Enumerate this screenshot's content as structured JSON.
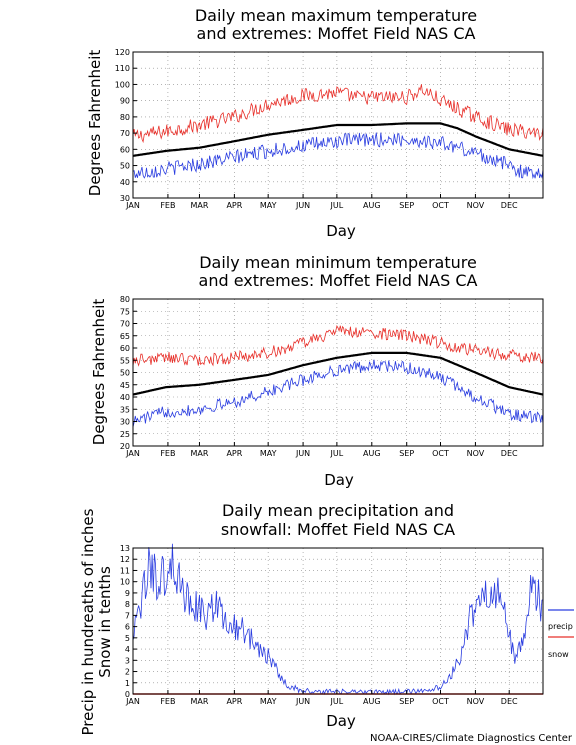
{
  "credit": "NOAA-CIRES/Climate Diagnostics Center",
  "chart_data": [
    {
      "type": "line",
      "title": [
        "Daily mean maximum temperature",
        "and extremes: Moffet Field NAS CA"
      ],
      "xlabel": "Day",
      "ylabel": "Degrees Fahrenheit",
      "ylim": [
        30,
        120
      ],
      "yticks": [
        30,
        40,
        50,
        60,
        70,
        80,
        90,
        100,
        110,
        120
      ],
      "xlim": [
        1,
        365
      ],
      "xticks": [
        "JAN",
        "FEB",
        "MAR",
        "APR",
        "MAY",
        "JUN",
        "JUL",
        "AUG",
        "SEP",
        "OCT",
        "NOV",
        "DEC"
      ],
      "grid": true,
      "series": [
        {
          "color": "#e8302a",
          "style": "noisy",
          "x": [
            1,
            30,
            60,
            91,
            121,
            152,
            182,
            200,
            213,
            244,
            258,
            274,
            305,
            335,
            365
          ],
          "values": [
            68,
            71,
            75,
            80,
            88,
            93,
            95,
            92,
            92,
            92,
            97,
            90,
            80,
            72,
            70
          ]
        },
        {
          "color": "#000000",
          "style": "mean",
          "x": [
            1,
            30,
            60,
            91,
            121,
            152,
            182,
            213,
            244,
            274,
            289,
            305,
            335,
            365
          ],
          "values": [
            56,
            59,
            61,
            65,
            69,
            72,
            75,
            75,
            76,
            76,
            73,
            68,
            60,
            56
          ]
        },
        {
          "color": "#2a3de0",
          "style": "noisy",
          "x": [
            1,
            30,
            60,
            91,
            121,
            152,
            182,
            213,
            244,
            274,
            305,
            335,
            350,
            365
          ],
          "values": [
            45,
            48,
            51,
            55,
            59,
            62,
            65,
            66,
            66,
            64,
            58,
            50,
            45,
            47
          ]
        }
      ]
    },
    {
      "type": "line",
      "title": [
        "Daily mean minimum temperature",
        "and extremes: Moffet Field NAS CA"
      ],
      "xlabel": "Day",
      "ylabel": "Degrees Fahrenheit",
      "ylim": [
        20,
        80
      ],
      "yticks": [
        20,
        25,
        30,
        35,
        40,
        45,
        50,
        55,
        60,
        65,
        70,
        75,
        80
      ],
      "xlim": [
        1,
        365
      ],
      "xticks": [
        "JAN",
        "FEB",
        "MAR",
        "APR",
        "MAY",
        "JUN",
        "JUL",
        "AUG",
        "SEP",
        "OCT",
        "NOV",
        "DEC"
      ],
      "grid": true,
      "series": [
        {
          "color": "#e8302a",
          "style": "noisy",
          "x": [
            1,
            30,
            60,
            91,
            121,
            152,
            182,
            213,
            244,
            274,
            305,
            335,
            365
          ],
          "values": [
            55,
            56,
            55,
            56,
            58,
            62,
            67,
            66,
            65,
            62,
            59,
            57,
            56
          ]
        },
        {
          "color": "#000000",
          "style": "mean",
          "x": [
            1,
            30,
            60,
            91,
            121,
            152,
            182,
            213,
            244,
            274,
            305,
            335,
            365
          ],
          "values": [
            41,
            44,
            45,
            47,
            49,
            53,
            56,
            58,
            58,
            56,
            50,
            44,
            41
          ]
        },
        {
          "color": "#2a3de0",
          "style": "noisy",
          "x": [
            1,
            30,
            60,
            91,
            121,
            152,
            182,
            213,
            244,
            274,
            305,
            335,
            365
          ],
          "values": [
            30,
            34,
            35,
            38,
            42,
            47,
            51,
            53,
            52,
            48,
            40,
            33,
            31
          ]
        }
      ]
    },
    {
      "type": "line",
      "title": [
        "Daily mean precipitation and",
        "snowfall: Moffet Field NAS CA"
      ],
      "xlabel": "Day",
      "ylabel": [
        "Precip in hundreaths of inches",
        "Snow in tenths"
      ],
      "ylim": [
        0,
        13
      ],
      "yticks": [
        0,
        1,
        2,
        3,
        4,
        5,
        6,
        7,
        8,
        9,
        10,
        11,
        12,
        13
      ],
      "xlim": [
        1,
        365
      ],
      "xticks": [
        "JAN",
        "FEB",
        "MAR",
        "APR",
        "MAY",
        "JUN",
        "JUL",
        "AUG",
        "SEP",
        "OCT",
        "NOV",
        "DEC"
      ],
      "grid": true,
      "legend": {
        "placement": "right",
        "items": [
          {
            "label": "precip",
            "color": "#2a3de0"
          },
          {
            "label": "snow",
            "color": "#e8302a"
          }
        ]
      },
      "series": [
        {
          "name": "precip",
          "color": "#2a3de0",
          "style": "noisy-pos",
          "x": [
            1,
            8,
            15,
            25,
            35,
            45,
            55,
            65,
            75,
            85,
            95,
            105,
            115,
            125,
            135,
            150,
            180,
            210,
            240,
            265,
            280,
            290,
            298,
            305,
            312,
            320,
            326,
            332,
            340,
            348,
            355,
            360,
            365
          ],
          "values": [
            5,
            8,
            11,
            10,
            12,
            9,
            8,
            7,
            8,
            6,
            6,
            5,
            4,
            3,
            1,
            0.3,
            0.2,
            0.2,
            0.2,
            0.3,
            1,
            3,
            6,
            8,
            10,
            8,
            9,
            7,
            3,
            5,
            10,
            9,
            7
          ]
        },
        {
          "name": "snow",
          "color": "#e8302a",
          "style": "flat",
          "x": [
            1,
            365
          ],
          "values": [
            0,
            0
          ]
        }
      ]
    }
  ]
}
